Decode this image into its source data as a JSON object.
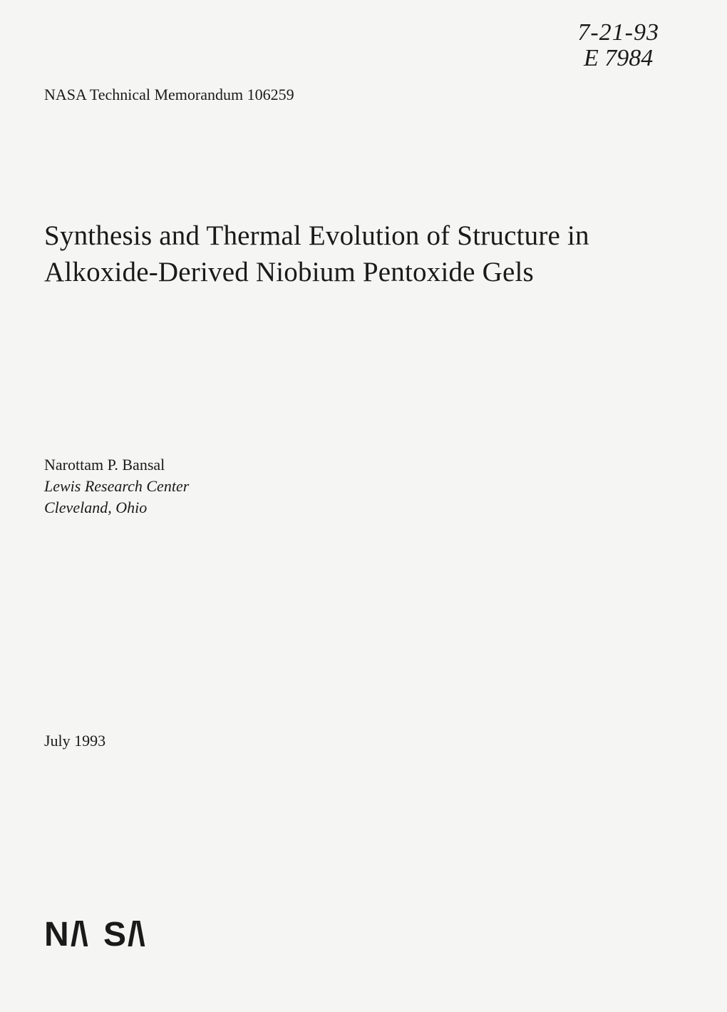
{
  "handwritten": {
    "line1": "7-21-93",
    "line2": "E 7984"
  },
  "header": {
    "memo_number": "NASA Technical Memorandum 106259"
  },
  "title": "Synthesis and Thermal Evolution of Structure in Alkoxide-Derived Niobium Pentoxide Gels",
  "author": {
    "name": "Narottam P. Bansal",
    "affiliation_line1": "Lewis Research Center",
    "affiliation_line2": "Cleveland, Ohio"
  },
  "date": "July 1993",
  "logo_text": "NASA",
  "styling": {
    "background_color": "#f5f5f3",
    "text_color": "#1a1a1a",
    "title_fontsize": 39,
    "body_fontsize": 22,
    "handwritten_fontsize": 34,
    "logo_fontsize": 55,
    "font_family": "Times New Roman",
    "handwritten_font": "cursive",
    "logo_font": "Arial"
  }
}
